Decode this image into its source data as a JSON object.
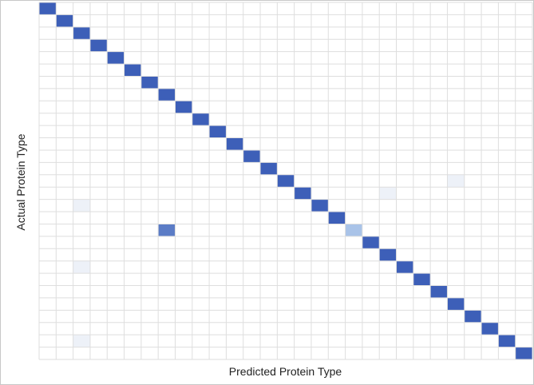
{
  "chart_data": {
    "type": "heatmap",
    "xlabel": "Predicted Protein Type",
    "ylabel": "Actual Protein Type",
    "n": 29,
    "colors": {
      "high": "#3d5fb8",
      "medium": "#5b7cc6",
      "light": "#a9c3e8",
      "faint": "#edf1f8",
      "zero": "#ffffff",
      "grid": "#dedede"
    },
    "cells": [
      {
        "row": 0,
        "col": 0,
        "value": 1.0
      },
      {
        "row": 1,
        "col": 1,
        "value": 1.0
      },
      {
        "row": 2,
        "col": 2,
        "value": 1.0
      },
      {
        "row": 3,
        "col": 3,
        "value": 1.0
      },
      {
        "row": 4,
        "col": 4,
        "value": 1.0
      },
      {
        "row": 5,
        "col": 5,
        "value": 1.0
      },
      {
        "row": 6,
        "col": 6,
        "value": 1.0
      },
      {
        "row": 7,
        "col": 7,
        "value": 1.0
      },
      {
        "row": 8,
        "col": 8,
        "value": 1.0
      },
      {
        "row": 9,
        "col": 9,
        "value": 1.0
      },
      {
        "row": 10,
        "col": 10,
        "value": 1.0
      },
      {
        "row": 11,
        "col": 11,
        "value": 1.0
      },
      {
        "row": 12,
        "col": 12,
        "value": 1.0
      },
      {
        "row": 13,
        "col": 13,
        "value": 1.0
      },
      {
        "row": 14,
        "col": 14,
        "value": 1.0
      },
      {
        "row": 15,
        "col": 15,
        "value": 1.0
      },
      {
        "row": 16,
        "col": 16,
        "value": 1.0
      },
      {
        "row": 17,
        "col": 17,
        "value": 1.0
      },
      {
        "row": 18,
        "col": 18,
        "value": 0.35
      },
      {
        "row": 18,
        "col": 7,
        "value": 0.65
      },
      {
        "row": 19,
        "col": 19,
        "value": 1.0
      },
      {
        "row": 20,
        "col": 20,
        "value": 1.0
      },
      {
        "row": 21,
        "col": 21,
        "value": 1.0
      },
      {
        "row": 22,
        "col": 22,
        "value": 1.0
      },
      {
        "row": 23,
        "col": 23,
        "value": 1.0
      },
      {
        "row": 24,
        "col": 24,
        "value": 1.0
      },
      {
        "row": 25,
        "col": 25,
        "value": 1.0
      },
      {
        "row": 26,
        "col": 26,
        "value": 1.0
      },
      {
        "row": 27,
        "col": 27,
        "value": 1.0
      },
      {
        "row": 28,
        "col": 28,
        "value": 1.0
      },
      {
        "row": 16,
        "col": 2,
        "value": 0.03
      },
      {
        "row": 21,
        "col": 2,
        "value": 0.03
      },
      {
        "row": 27,
        "col": 2,
        "value": 0.03
      },
      {
        "row": 15,
        "col": 20,
        "value": 0.03
      },
      {
        "row": 14,
        "col": 24,
        "value": 0.03
      }
    ]
  }
}
